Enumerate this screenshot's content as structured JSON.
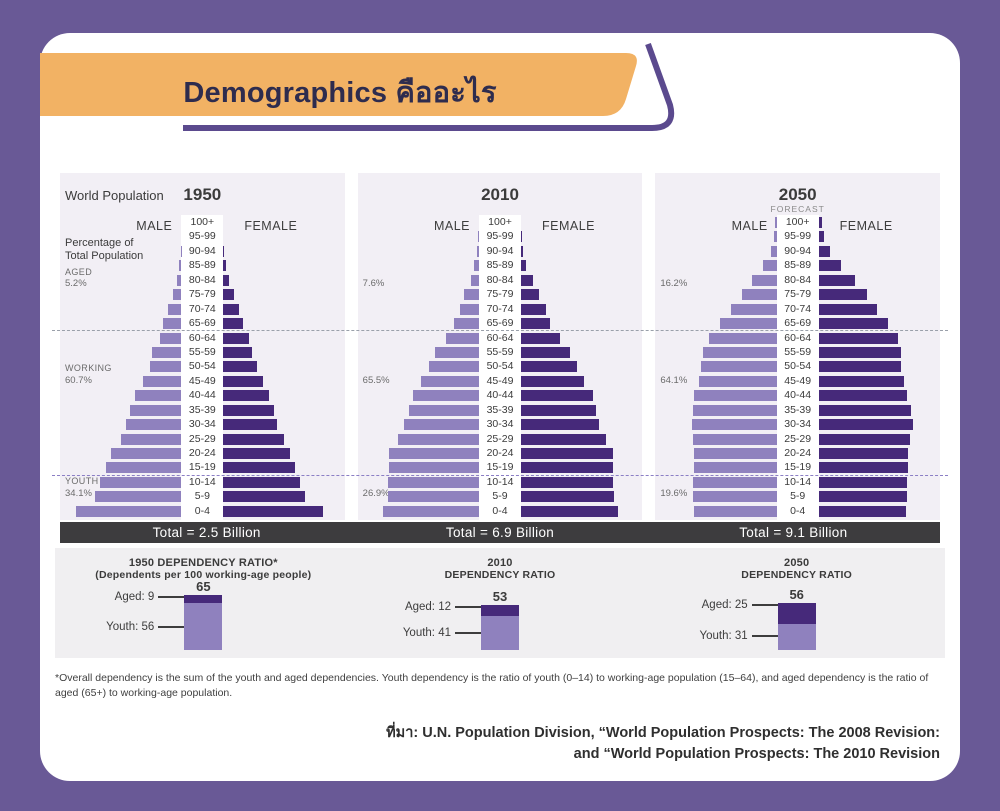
{
  "header": {
    "title": "Demographics คืออะไร"
  },
  "colors": {
    "background": "#695996",
    "card": "#ffffff",
    "banner_orange": "#f2b264",
    "title_text": "#2e2c4e",
    "swoosh_purple": "#5b4a8e",
    "male_bar": "#8f81be",
    "female_bar": "#46297a",
    "panel_bg": "#f2eff5",
    "total_bar_bg": "#3d3c3e",
    "dependency_panel_bg": "#f0eff1"
  },
  "pyramid_section": {
    "world_population_label": "World Population",
    "male_label": "MALE",
    "female_label": "FEMALE",
    "pct_note_line1": "Percentage of",
    "pct_note_line2": "Total Population",
    "aged_label": "AGED",
    "working_label": "WORKING",
    "youth_label": "YOUTH",
    "panels": [
      {
        "year": "1950",
        "forecast": "",
        "aged_pct": "5.2%",
        "working_pct": "60.7%",
        "youth_pct": "34.1%",
        "total": "Total = 2.5 Billion"
      },
      {
        "year": "2010",
        "forecast": "",
        "aged_pct": "7.6%",
        "working_pct": "65.5%",
        "youth_pct": "26.9%",
        "total": "Total = 6.9 Billion"
      },
      {
        "year": "2050",
        "forecast": "FORECAST",
        "aged_pct": "16.2%",
        "working_pct": "64.1%",
        "youth_pct": "19.6%",
        "total": "Total = 9.1 Billion"
      }
    ]
  },
  "chart_data": [
    {
      "type": "bar",
      "subtype": "population-pyramid",
      "title": "World Population 1950",
      "units": "relative bar length, % of half-axis (no numeric axis shown)",
      "age_groups": [
        "100+",
        "95-99",
        "90-94",
        "85-89",
        "80-84",
        "75-79",
        "70-74",
        "65-69",
        "60-64",
        "55-59",
        "50-54",
        "45-49",
        "40-44",
        "35-39",
        "30-34",
        "25-29",
        "20-24",
        "15-19",
        "10-14",
        "5-9",
        "0-4"
      ],
      "series": [
        {
          "name": "male",
          "values": [
            0,
            0,
            0.5,
            2,
            3.5,
            7,
            11,
            15,
            18,
            24,
            26,
            32,
            38,
            42,
            46,
            50,
            58,
            62,
            67,
            71,
            87
          ]
        },
        {
          "name": "female",
          "values": [
            0,
            0,
            0.5,
            2,
            4.5,
            9,
            13,
            16,
            21,
            24,
            28,
            33,
            38,
            42,
            44,
            50,
            55,
            59,
            63,
            67,
            82
          ]
        }
      ],
      "aged_pct": 5.2,
      "working_pct": 60.7,
      "youth_pct": 34.1,
      "total_population": "2.5 Billion"
    },
    {
      "type": "bar",
      "subtype": "population-pyramid",
      "title": "World Population 2010",
      "units": "relative bar length, % of half-axis (no numeric axis shown)",
      "age_groups": [
        "100+",
        "95-99",
        "90-94",
        "85-89",
        "80-84",
        "75-79",
        "70-74",
        "65-69",
        "60-64",
        "55-59",
        "50-54",
        "45-49",
        "40-44",
        "35-39",
        "30-34",
        "25-29",
        "20-24",
        "15-19",
        "10-14",
        "5-9",
        "0-4"
      ],
      "series": [
        {
          "name": "male",
          "values": [
            0,
            0.5,
            2,
            4,
            7,
            12,
            16,
            21,
            27,
            36,
            41,
            48,
            54,
            58,
            62,
            67,
            74,
            74,
            75,
            75,
            79
          ]
        },
        {
          "name": "female",
          "values": [
            0,
            0.5,
            2,
            4.5,
            10,
            15,
            21,
            24,
            32,
            40,
            46,
            52,
            59,
            62,
            64,
            70,
            76,
            76,
            76,
            77,
            80
          ]
        }
      ],
      "aged_pct": 7.6,
      "working_pct": 65.5,
      "youth_pct": 26.9,
      "total_population": "6.9 Billion"
    },
    {
      "type": "bar",
      "subtype": "population-pyramid",
      "title": "World Population 2050 (forecast)",
      "units": "relative bar length, % of half-axis (no numeric axis shown)",
      "age_groups": [
        "100+",
        "95-99",
        "90-94",
        "85-89",
        "80-84",
        "75-79",
        "70-74",
        "65-69",
        "60-64",
        "55-59",
        "50-54",
        "45-49",
        "40-44",
        "35-39",
        "30-34",
        "25-29",
        "20-24",
        "15-19",
        "10-14",
        "5-9",
        "0-4"
      ],
      "series": [
        {
          "name": "male",
          "values": [
            1,
            2.5,
            5,
            11,
            20,
            29,
            38,
            47,
            56,
            61,
            62,
            64,
            68,
            69,
            70,
            69,
            68,
            68,
            69,
            69,
            68
          ]
        },
        {
          "name": "female",
          "values": [
            3,
            4,
            9,
            18,
            30,
            40,
            48,
            57,
            65,
            68,
            68,
            70,
            73,
            76,
            78,
            75,
            74,
            74,
            73,
            73,
            72
          ]
        }
      ],
      "aged_pct": 16.2,
      "working_pct": 64.1,
      "youth_pct": 19.6,
      "total_population": "9.1 Billion"
    },
    {
      "type": "bar",
      "subtype": "stacked-dependency-ratio",
      "title": "Dependency ratio (dependents per 100 working-age people)",
      "categories": [
        "1950",
        "2010",
        "2050"
      ],
      "series": [
        {
          "name": "Aged",
          "values": [
            9,
            12,
            25
          ]
        },
        {
          "name": "Youth",
          "values": [
            56,
            41,
            31
          ]
        }
      ],
      "totals": [
        65,
        53,
        56
      ]
    }
  ],
  "dependency_section": {
    "groups": [
      {
        "title_line1": "1950 DEPENDENCY RATIO*",
        "title_line2": "(Dependents per 100 working-age people)",
        "total": "65",
        "aged": 9,
        "youth": 56,
        "aged_label": "Aged: 9",
        "youth_label": "Youth: 56"
      },
      {
        "title_line1": "2010",
        "title_line2": "DEPENDENCY RATIO",
        "total": "53",
        "aged": 12,
        "youth": 41,
        "aged_label": "Aged: 12",
        "youth_label": "Youth: 41"
      },
      {
        "title_line1": "2050",
        "title_line2": "DEPENDENCY RATIO",
        "total": "56",
        "aged": 25,
        "youth": 31,
        "aged_label": "Aged: 25",
        "youth_label": "Youth: 31"
      }
    ]
  },
  "footnote": "*Overall dependency is the sum of the youth and aged dependencies. Youth dependency is the ratio of youth (0–14) to working-age population (15–64), and aged dependency is the ratio of aged (65+) to working-age population.",
  "source": {
    "line1": "ที่มา: U.N. Population Division, “World Population Prospects: The 2008 Revision:",
    "line2": "and “World Population Prospects: The 2010 Revision"
  }
}
